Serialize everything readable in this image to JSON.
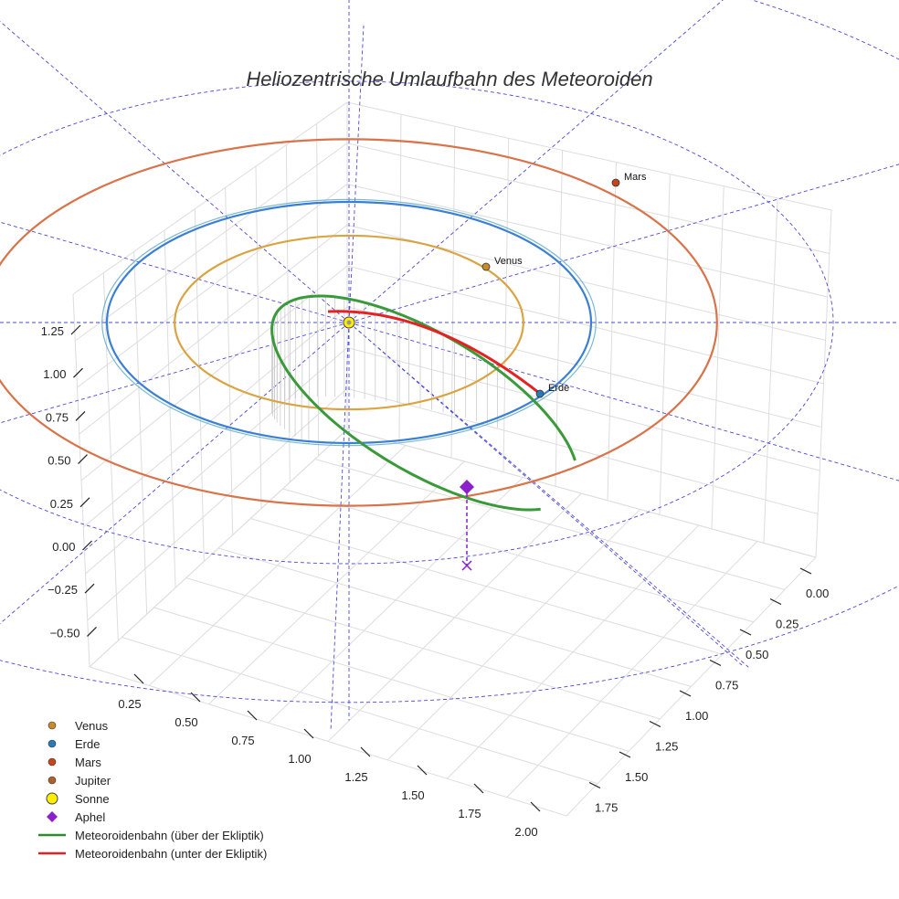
{
  "chart_data": {
    "type": "scatter3d",
    "title": "Heliozentrische Umlaufbahn des Meteoroiden",
    "z_axis": {
      "ticks": [
        "1.25",
        "1.00",
        "0.75",
        "0.50",
        "0.25",
        "0.00",
        "−0.25",
        "−0.50"
      ],
      "range": [
        -0.6,
        1.3
      ]
    },
    "x_axis": {
      "ticks": [
        "0.25",
        "0.50",
        "0.75",
        "1.00",
        "1.25",
        "1.50",
        "1.75",
        "2.00"
      ],
      "range": [
        0.1,
        2.05
      ]
    },
    "y_axis": {
      "ticks": [
        "0.00",
        "0.25",
        "0.50",
        "0.75",
        "1.00",
        "1.25",
        "1.50",
        "1.75"
      ],
      "range": [
        -0.05,
        1.8
      ]
    },
    "planets": [
      {
        "name": "Venus",
        "label": "Venus",
        "orbit_radius_au": 0.72,
        "color": "#d9a441",
        "marker_color": "#c98a2a"
      },
      {
        "name": "Erde",
        "label": "Erde",
        "orbit_radius_au": 1.0,
        "color": "#3b7fd4",
        "marker_color": "#2a7ab8"
      },
      {
        "name": "Mars",
        "label": "Mars",
        "orbit_radius_au": 1.52,
        "color": "#d9734a",
        "marker_color": "#c8451c"
      }
    ],
    "meteoroid_orbit": {
      "above_ecliptic": {
        "name": "Meteoroidenbahn (über der Ekliptik)",
        "color": "#3a9a3a"
      },
      "below_ecliptic": {
        "name": "Meteoroidenbahn (unter der Ekliptik)",
        "color": "#e52222"
      }
    },
    "aphel": {
      "name": "Aphel",
      "color": "#8b1fc9"
    },
    "sun": {
      "name": "Sonne",
      "color": "#ffee00"
    },
    "legend": [
      {
        "label": "Venus",
        "kind": "dot",
        "color": "#c98a2a"
      },
      {
        "label": "Erde",
        "kind": "dot",
        "color": "#2a7ab8"
      },
      {
        "label": "Mars",
        "kind": "dot",
        "color": "#c8451c"
      },
      {
        "label": "Jupiter",
        "kind": "dot",
        "color": "#b06030"
      },
      {
        "label": "Sonne",
        "kind": "sun",
        "color": "#ffee00"
      },
      {
        "label": "Aphel",
        "kind": "diamond",
        "color": "#8b1fc9"
      },
      {
        "label": "Meteoroidenbahn (über der Ekliptik)",
        "kind": "line",
        "color": "#2e8b2e"
      },
      {
        "label": "Meteoroidenbahn (unter der Ekliptik)",
        "kind": "line",
        "color": "#e52222"
      }
    ]
  }
}
